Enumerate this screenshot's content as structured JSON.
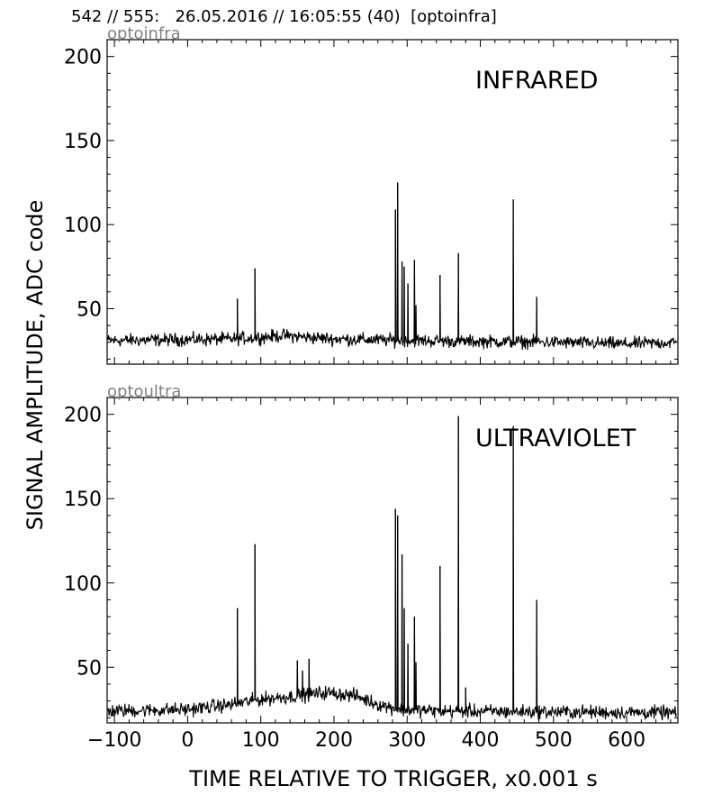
{
  "header": {
    "title": "542 // 555:   26.05.2016 // 16:05:55 (40)  [optoinfra]"
  },
  "chart_data": {
    "type": "line",
    "xlabel": "TIME RELATIVE TO TRIGGER,   x0.001 s",
    "ylabel": "SIGNAL AMPLITUDE,  ADC code",
    "xlim": [
      -110,
      670
    ],
    "ylim": [
      17,
      210
    ],
    "xticks": [
      -100,
      0,
      100,
      200,
      300,
      400,
      500,
      600
    ],
    "yticks": [
      50,
      100,
      150,
      200
    ],
    "line_color": "#000000",
    "grid": false,
    "panels": [
      {
        "tag": "optoinfra",
        "title": "INFRARED",
        "baseline": [
          [
            -110,
            31
          ],
          [
            60,
            32
          ],
          [
            100,
            33
          ],
          [
            130,
            34
          ],
          [
            200,
            32
          ],
          [
            300,
            31
          ],
          [
            500,
            30
          ],
          [
            600,
            29
          ],
          [
            670,
            30
          ]
        ],
        "noise": 3.2,
        "spikes": [
          [
            68,
            56
          ],
          [
            92,
            74
          ],
          [
            284,
            109
          ],
          [
            287,
            125
          ],
          [
            293,
            78
          ],
          [
            296,
            75
          ],
          [
            301,
            65
          ],
          [
            310,
            79
          ],
          [
            312,
            52
          ],
          [
            345,
            70
          ],
          [
            370,
            83
          ],
          [
            445,
            115
          ],
          [
            477,
            57
          ]
        ]
      },
      {
        "tag": "optoultra",
        "title": "ULTRAVIOLET",
        "baseline": [
          [
            -110,
            24
          ],
          [
            0,
            25
          ],
          [
            60,
            28
          ],
          [
            100,
            31
          ],
          [
            150,
            33
          ],
          [
            190,
            35
          ],
          [
            230,
            33
          ],
          [
            260,
            28
          ],
          [
            290,
            25
          ],
          [
            350,
            24
          ],
          [
            670,
            23
          ]
        ],
        "noise": 3.4,
        "spikes": [
          [
            68,
            85
          ],
          [
            92,
            123
          ],
          [
            150,
            54
          ],
          [
            157,
            48
          ],
          [
            166,
            55
          ],
          [
            284,
            144
          ],
          [
            287,
            140
          ],
          [
            293,
            117
          ],
          [
            296,
            85
          ],
          [
            301,
            64
          ],
          [
            310,
            80
          ],
          [
            312,
            53
          ],
          [
            345,
            110
          ],
          [
            370,
            199
          ],
          [
            380,
            38
          ],
          [
            445,
            193
          ],
          [
            477,
            90
          ]
        ]
      }
    ]
  }
}
